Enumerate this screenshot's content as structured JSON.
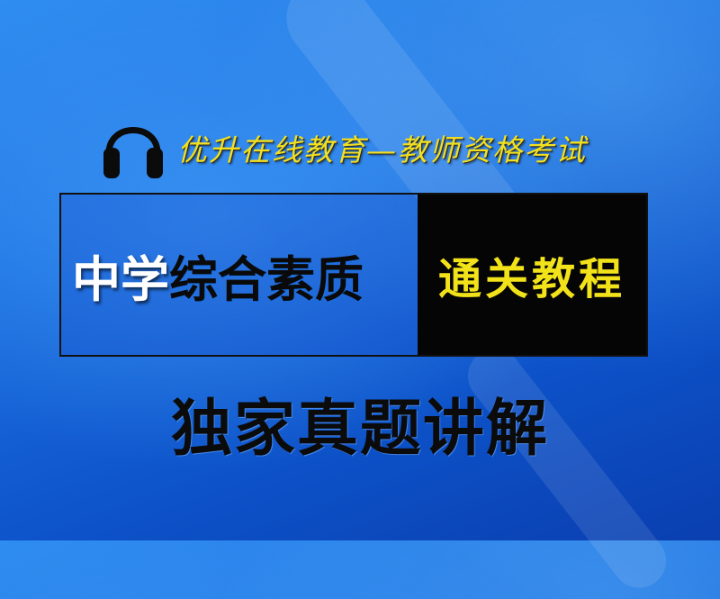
{
  "header": {
    "icon": "headphones-icon",
    "subtitle": "优升在线教育—教师资格考试"
  },
  "title": {
    "part1": "中学",
    "part2": "综合素质",
    "badge": "通关教程"
  },
  "footer": {
    "tagline": "独家真题讲解"
  },
  "colors": {
    "background": "#1b6fe0",
    "accent_yellow": "#f2e21a",
    "badge_bg": "#050505"
  }
}
